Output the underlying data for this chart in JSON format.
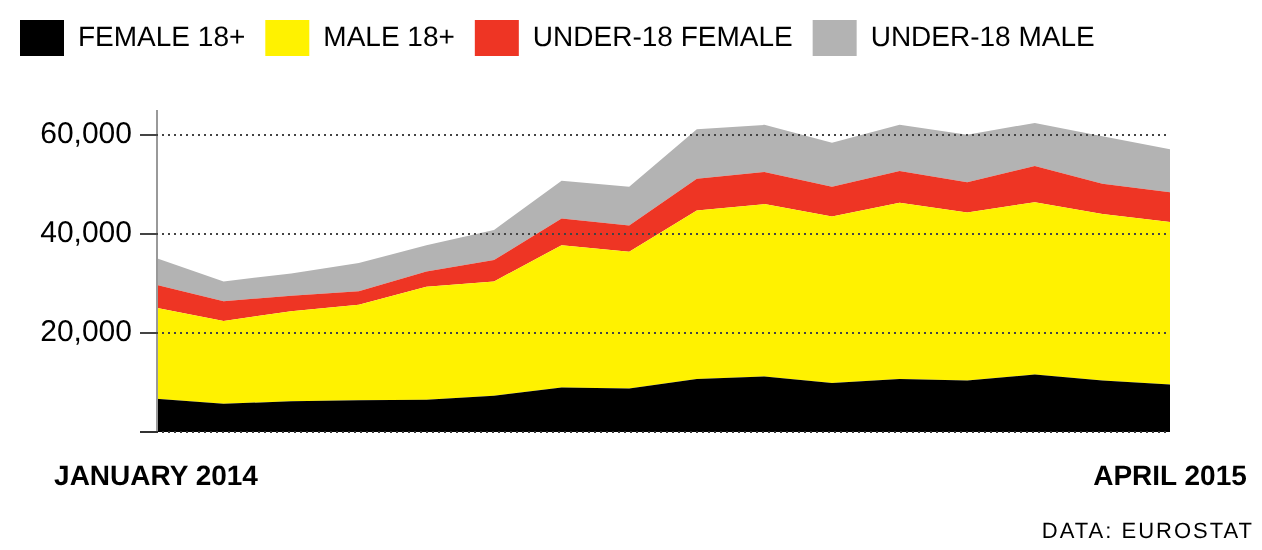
{
  "chart_data": {
    "type": "area",
    "stacked": true,
    "categories": [
      "JANUARY 2014",
      null,
      null,
      null,
      null,
      null,
      null,
      null,
      null,
      null,
      null,
      null,
      null,
      null,
      null,
      "APRIL 2015"
    ],
    "series": [
      {
        "name": "FEMALE 18+",
        "color": "#000000",
        "values": [
          6700,
          5700,
          6200,
          6400,
          6500,
          7300,
          9000,
          8800,
          10700,
          11200,
          9900,
          10700,
          10400,
          11600,
          10400,
          9600
        ]
      },
      {
        "name": "MALE 18+",
        "color": "#fff200",
        "values": [
          18400,
          16700,
          18200,
          19300,
          22800,
          23100,
          28700,
          27600,
          34000,
          34800,
          33600,
          35600,
          33900,
          34800,
          33600,
          32800
        ]
      },
      {
        "name": "UNDER-18 FEMALE",
        "color": "#ee3524",
        "values": [
          4600,
          4000,
          3100,
          2700,
          3100,
          4300,
          5400,
          5300,
          6400,
          6500,
          6000,
          6400,
          6100,
          7300,
          6100,
          6000
        ]
      },
      {
        "name": "UNDER-18 MALE",
        "color": "#b3b3b3",
        "values": [
          5400,
          4000,
          4500,
          5700,
          5300,
          6100,
          7600,
          7800,
          10000,
          9500,
          8900,
          9300,
          9600,
          8700,
          9600,
          8700
        ]
      }
    ],
    "ylim": [
      0,
      65000
    ],
    "yticks": [
      {
        "value": 0,
        "label": null
      },
      {
        "value": 20000,
        "label": "20,000"
      },
      {
        "value": 40000,
        "label": "40,000"
      },
      {
        "value": 60000,
        "label": "60,000"
      }
    ],
    "grid": "y",
    "legend": "top left",
    "annotations": [
      "DATA: EUROSTAT"
    ]
  }
}
